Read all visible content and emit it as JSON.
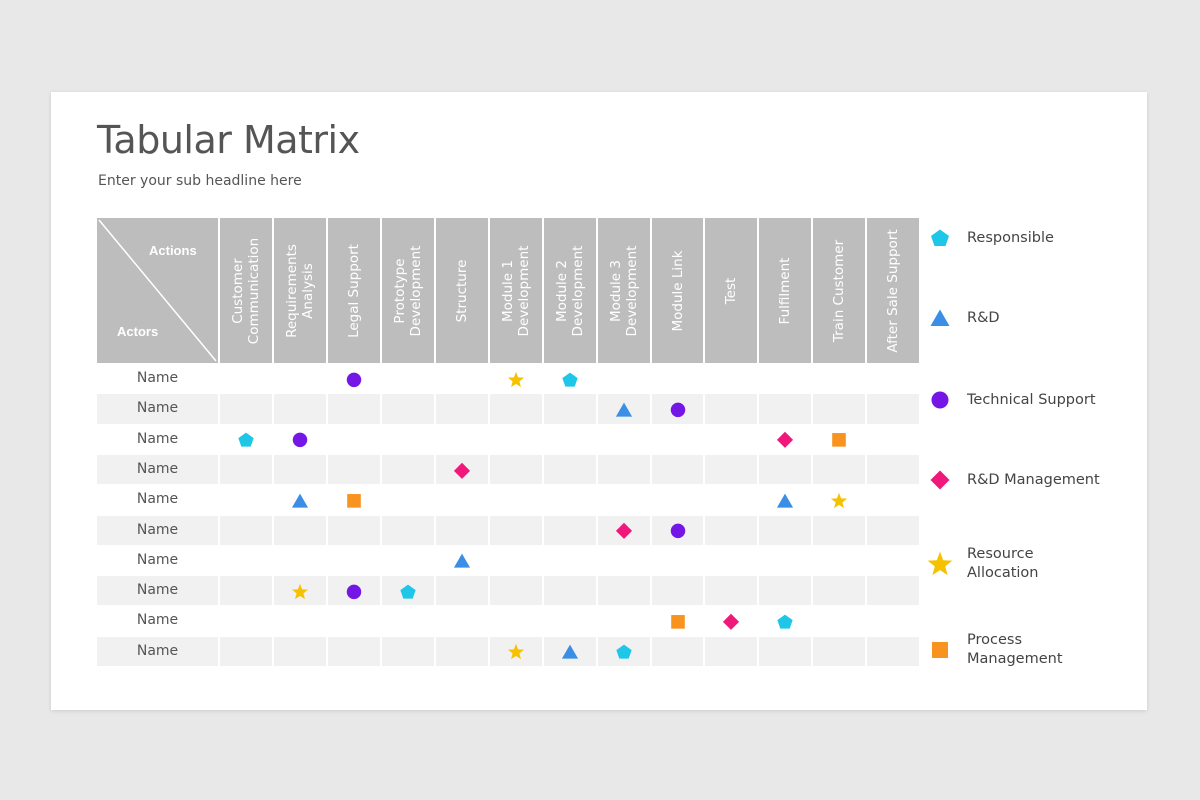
{
  "header": {
    "title": "Tabular Matrix",
    "subtitle": "Enter your sub headline here"
  },
  "matrix": {
    "corner_actions": "Actions",
    "corner_actors": "Actors",
    "columns": [
      "Customer\nCommunication",
      "Requirements\nAnalysis",
      "Legal Support",
      "Prototype\nDevelopment",
      "Structure",
      "Module 1\nDevelopment",
      "Module 2\nDevelopment",
      "Module 3\nDevelopment",
      "Module Link",
      "Test",
      "Fulfilment",
      "Train Customer",
      "After Sale Support"
    ],
    "rows": [
      {
        "name": "Name",
        "cells": [
          "",
          "",
          "technical-support",
          "",
          "",
          "resource-allocation",
          "responsible",
          "",
          "",
          "",
          "",
          "",
          ""
        ]
      },
      {
        "name": "Name",
        "cells": [
          "",
          "",
          "",
          "",
          "",
          "",
          "",
          "rnd",
          "technical-support",
          "",
          "",
          "",
          ""
        ]
      },
      {
        "name": "Name",
        "cells": [
          "responsible",
          "technical-support",
          "",
          "",
          "",
          "",
          "",
          "",
          "",
          "",
          "rnd-management",
          "process-management",
          ""
        ]
      },
      {
        "name": "Name",
        "cells": [
          "",
          "",
          "",
          "",
          "rnd-management",
          "",
          "",
          "",
          "",
          "",
          "",
          "",
          ""
        ]
      },
      {
        "name": "Name",
        "cells": [
          "",
          "rnd",
          "process-management",
          "",
          "",
          "",
          "",
          "",
          "",
          "",
          "rnd",
          "resource-allocation",
          ""
        ]
      },
      {
        "name": "Name",
        "cells": [
          "",
          "",
          "",
          "",
          "",
          "",
          "",
          "rnd-management",
          "technical-support",
          "",
          "",
          "",
          ""
        ]
      },
      {
        "name": "Name",
        "cells": [
          "",
          "",
          "",
          "",
          "rnd",
          "",
          "",
          "",
          "",
          "",
          "",
          "",
          ""
        ]
      },
      {
        "name": "Name",
        "cells": [
          "",
          "resource-allocation",
          "technical-support",
          "responsible",
          "",
          "",
          "",
          "",
          "",
          "",
          "",
          "",
          ""
        ]
      },
      {
        "name": "Name",
        "cells": [
          "",
          "",
          "",
          "",
          "",
          "",
          "",
          "",
          "process-management",
          "rnd-management",
          "responsible",
          "",
          ""
        ]
      },
      {
        "name": "Name",
        "cells": [
          "",
          "",
          "",
          "",
          "",
          "resource-allocation",
          "rnd",
          "responsible",
          "",
          "",
          "",
          "",
          ""
        ]
      }
    ]
  },
  "legend": [
    {
      "key": "responsible",
      "label": "Responsible",
      "shape": "pentagon",
      "color": "#1ec6e8"
    },
    {
      "key": "rnd",
      "label": "R&D",
      "shape": "triangle",
      "color": "#3a8ee6"
    },
    {
      "key": "technical-support",
      "label": "Technical Support",
      "shape": "circle",
      "color": "#7417e6"
    },
    {
      "key": "rnd-management",
      "label": "R&D Management",
      "shape": "diamond",
      "color": "#f0197b"
    },
    {
      "key": "resource-allocation",
      "label": "Resource\nAllocation",
      "shape": "star",
      "color": "#f6c200"
    },
    {
      "key": "process-management",
      "label": "Process\nManagement",
      "shape": "square",
      "color": "#f7931e"
    }
  ],
  "colors": {
    "header_bg": "#bdbdbd",
    "row_alt_bg": "#f1f1f1"
  }
}
